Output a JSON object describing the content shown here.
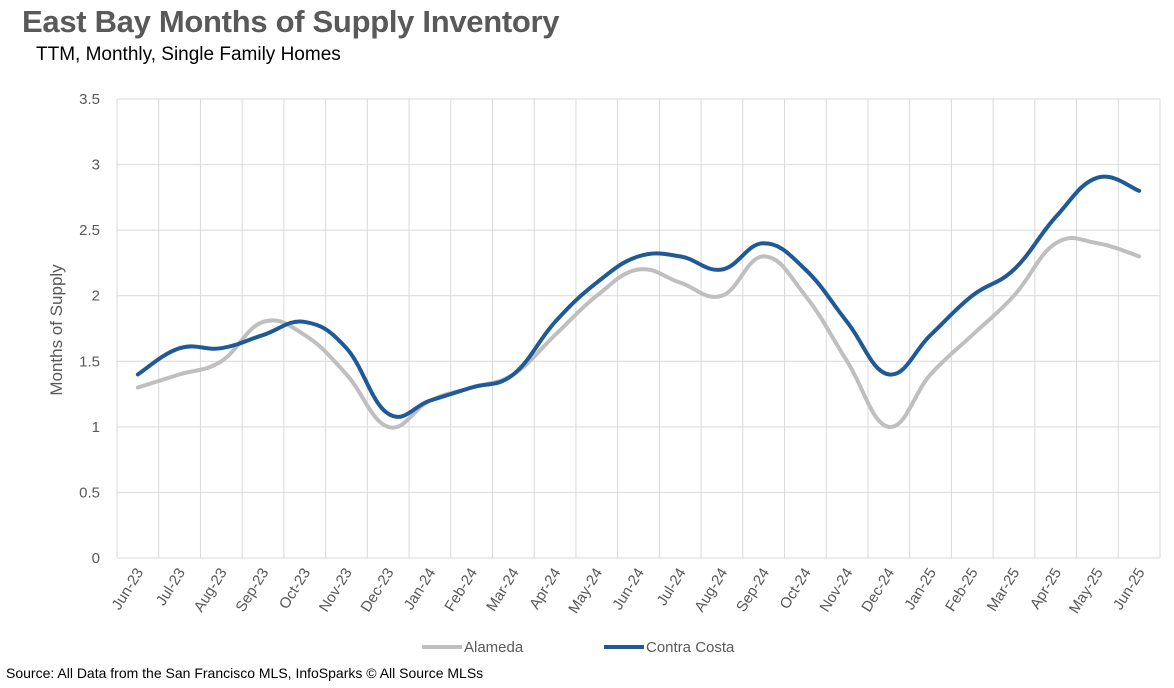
{
  "title": "East Bay Months of Supply Inventory",
  "subtitle": "TTM, Monthly, Single Family Homes",
  "source": "Source: All Data from the San Francisco MLS, InfoSparks © All Source MLSs",
  "chart_data": {
    "type": "line",
    "title": "East Bay Months of Supply Inventory",
    "subtitle": "TTM, Monthly, Single Family Homes",
    "ylabel": "Months of Supply",
    "xlabel": "",
    "ylim": [
      0,
      3.5
    ],
    "yticks": [
      "0",
      "0.5",
      "1",
      "1.5",
      "2",
      "2.5",
      "3",
      "3.5"
    ],
    "grid": true,
    "legend_position": "bottom",
    "categories": [
      "Jun-23",
      "Jul-23",
      "Aug-23",
      "Sep-23",
      "Oct-23",
      "Nov-23",
      "Dec-23",
      "Jan-24",
      "Feb-24",
      "Mar-24",
      "Apr-24",
      "May-24",
      "Jun-24",
      "Jul-24",
      "Aug-24",
      "Sep-24",
      "Oct-24",
      "Nov-24",
      "Dec-24",
      "Jan-25",
      "Feb-25",
      "Mar-25",
      "Apr-25",
      "May-25",
      "Jun-25"
    ],
    "series": [
      {
        "name": "Alameda",
        "color": "#BFBFBF",
        "values": [
          1.3,
          1.4,
          1.5,
          1.8,
          1.7,
          1.4,
          1.0,
          1.2,
          1.3,
          1.4,
          1.7,
          2.0,
          2.2,
          2.1,
          2.0,
          2.3,
          2.0,
          1.5,
          1.0,
          1.4,
          1.7,
          2.0,
          2.4,
          2.4,
          2.3
        ]
      },
      {
        "name": "Contra Costa",
        "color": "#1F5A96",
        "values": [
          1.4,
          1.6,
          1.6,
          1.7,
          1.8,
          1.6,
          1.1,
          1.2,
          1.3,
          1.4,
          1.8,
          2.1,
          2.3,
          2.3,
          2.2,
          2.4,
          2.2,
          1.8,
          1.4,
          1.7,
          2.0,
          2.2,
          2.6,
          2.9,
          2.8
        ]
      }
    ]
  }
}
